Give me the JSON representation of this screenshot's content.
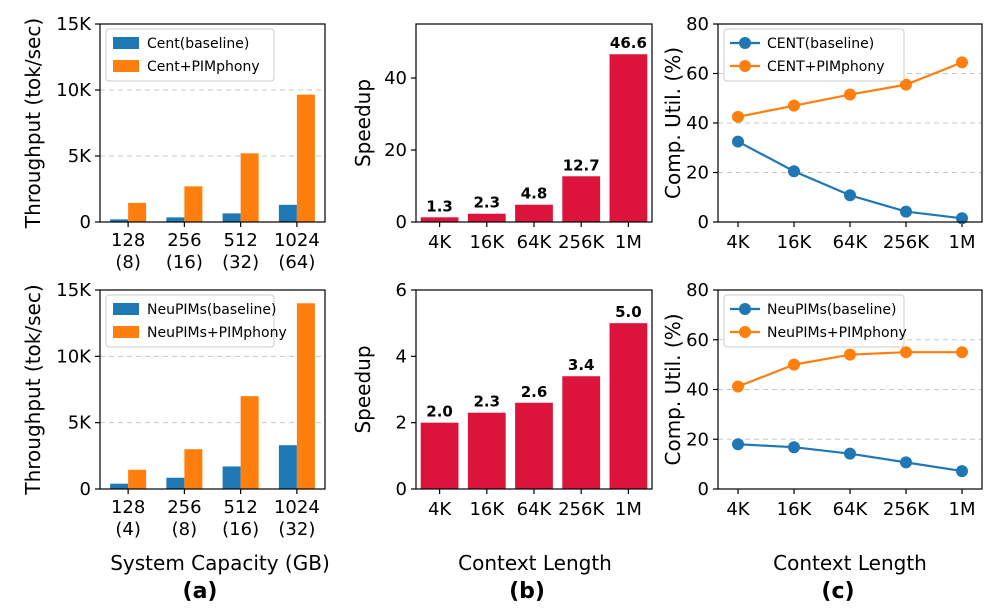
{
  "colors": {
    "blue": "#1f77b4",
    "orange": "#ff7f0e",
    "red": "#dc143c",
    "grid": "#c8c8c8"
  },
  "figure_labels": {
    "panel_a": "(a)",
    "panel_b": "(b)",
    "panel_c": "(c)",
    "xlabel_a": "System Capacity (GB)",
    "xlabel_b": "Context Length",
    "xlabel_c": "Context Length"
  },
  "chart_data": [
    {
      "id": "a-top",
      "type": "bar",
      "categories": [
        "128\n(8)",
        "256\n(16)",
        "512\n(32)",
        "1024\n(64)"
      ],
      "series": [
        {
          "name": "Cent(baseline)",
          "color": "#1f77b4",
          "values": [
            200,
            350,
            650,
            1300
          ]
        },
        {
          "name": "Cent+PIMphony",
          "color": "#ff7f0e",
          "values": [
            1450,
            2700,
            5200,
            9650
          ]
        }
      ],
      "ylabel": "Throughput (tok/sec)",
      "ylim": [
        0,
        15000
      ],
      "yticks": [
        0,
        5000,
        10000,
        15000
      ],
      "yticklabels": [
        "0",
        "5K",
        "10K",
        "15K"
      ],
      "grid": true,
      "legend": "top-left"
    },
    {
      "id": "b-top",
      "type": "bar",
      "categories": [
        "4K",
        "16K",
        "64K",
        "256K",
        "1M"
      ],
      "values": [
        1.3,
        2.3,
        4.8,
        12.7,
        46.6
      ],
      "labels": [
        "1.3",
        "2.3",
        "4.8",
        "12.7",
        "46.6"
      ],
      "color": "#dc143c",
      "ylabel": "Speedup",
      "ylim": [
        0,
        55
      ],
      "yticks": [
        0,
        20,
        40
      ],
      "yticklabels": [
        "0",
        "20",
        "40"
      ],
      "grid": false
    },
    {
      "id": "c-top",
      "type": "line",
      "categories": [
        "4K",
        "16K",
        "64K",
        "256K",
        "1M"
      ],
      "series": [
        {
          "name": "CENT(baseline)",
          "color": "#1f77b4",
          "values": [
            32.5,
            20.5,
            10.8,
            4.2,
            1.5
          ]
        },
        {
          "name": "CENT+PIMphony",
          "color": "#ff7f0e",
          "values": [
            42.5,
            47,
            51.5,
            55.5,
            64.5
          ]
        }
      ],
      "ylabel": "Comp. Util. (%)",
      "ylim": [
        0,
        80
      ],
      "yticks": [
        0,
        20,
        40,
        60,
        80
      ],
      "yticklabels": [
        "0",
        "20",
        "40",
        "60",
        "80"
      ],
      "grid": true,
      "legend": "top-left"
    },
    {
      "id": "a-bottom",
      "type": "bar",
      "categories": [
        "128\n(4)",
        "256\n(8)",
        "512\n(16)",
        "1024\n(32)"
      ],
      "series": [
        {
          "name": "NeuPIMs(baseline)",
          "color": "#1f77b4",
          "values": [
            400,
            850,
            1700,
            3300
          ]
        },
        {
          "name": "NeuPIMs+PIMphony",
          "color": "#ff7f0e",
          "values": [
            1450,
            3000,
            7000,
            14000
          ]
        }
      ],
      "ylabel": "Throughput (tok/sec)",
      "ylim": [
        0,
        15000
      ],
      "yticks": [
        0,
        5000,
        10000,
        15000
      ],
      "yticklabels": [
        "0",
        "5K",
        "10K",
        "15K"
      ],
      "grid": true,
      "legend": "top-left"
    },
    {
      "id": "b-bottom",
      "type": "bar",
      "categories": [
        "4K",
        "16K",
        "64K",
        "256K",
        "1M"
      ],
      "values": [
        2.0,
        2.3,
        2.6,
        3.4,
        5.0
      ],
      "labels": [
        "2.0",
        "2.3",
        "2.6",
        "3.4",
        "5.0"
      ],
      "color": "#dc143c",
      "ylabel": "Speedup",
      "ylim": [
        0,
        6
      ],
      "yticks": [
        0,
        2,
        4,
        6
      ],
      "yticklabels": [
        "0",
        "2",
        "4",
        "6"
      ],
      "grid": false
    },
    {
      "id": "c-bottom",
      "type": "line",
      "categories": [
        "4K",
        "16K",
        "64K",
        "256K",
        "1M"
      ],
      "series": [
        {
          "name": "NeuPIMs(baseline)",
          "color": "#1f77b4",
          "values": [
            18,
            16.8,
            14.2,
            10.7,
            7.2
          ]
        },
        {
          "name": "NeuPIMs+PIMphony",
          "color": "#ff7f0e",
          "values": [
            41.2,
            50,
            54,
            55,
            55
          ]
        }
      ],
      "ylabel": "Comp. Util. (%)",
      "ylim": [
        0,
        80
      ],
      "yticks": [
        0,
        20,
        40,
        60,
        80
      ],
      "yticklabels": [
        "0",
        "20",
        "40",
        "60",
        "80"
      ],
      "grid": true,
      "legend": "top-left"
    }
  ]
}
